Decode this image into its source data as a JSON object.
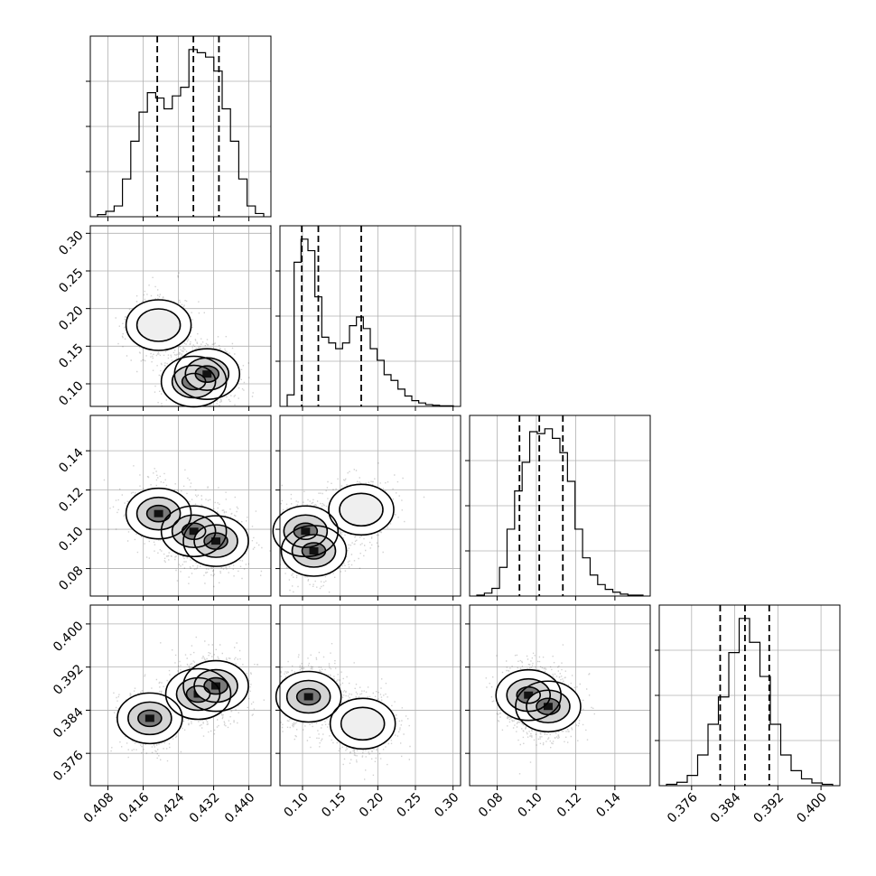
{
  "chart_data": {
    "type": "corner",
    "grid": true,
    "parameters": [
      {
        "range": [
          0.404,
          0.445
        ],
        "ticks": [
          0.408,
          0.416,
          0.424,
          0.432,
          0.44
        ],
        "tick_labels": [
          "0.408",
          "0.416",
          "0.424",
          "0.432",
          "0.440"
        ],
        "quantiles": [
          0.4192,
          0.4274,
          0.4332
        ],
        "hist": [
          2,
          5,
          10,
          35,
          70,
          97,
          115,
          110,
          100,
          112,
          120,
          155,
          152,
          148,
          135,
          100,
          70,
          35,
          10,
          3
        ],
        "modes": [
          {
            "m": 0.4195,
            "s": 0.0032,
            "w": 0.45
          },
          {
            "m": 0.429,
            "s": 0.0035,
            "w": 0.55
          }
        ]
      },
      {
        "range": [
          0.07,
          0.31
        ],
        "ticks": [
          0.1,
          0.15,
          0.2,
          0.25,
          0.3
        ],
        "tick_labels": [
          "0.10",
          "0.15",
          "0.20",
          "0.25",
          "0.30"
        ],
        "quantiles": [
          0.099,
          0.121,
          0.178
        ],
        "hist": [
          20,
          250,
          290,
          270,
          190,
          120,
          110,
          100,
          110,
          140,
          155,
          135,
          100,
          80,
          55,
          45,
          30,
          18,
          10,
          6,
          3,
          2,
          1,
          1
        ],
        "modes": [
          {
            "m": 0.108,
            "s": 0.012,
            "w": 0.55
          },
          {
            "m": 0.175,
            "s": 0.022,
            "w": 0.45
          }
        ]
      },
      {
        "range": [
          0.066,
          0.158
        ],
        "ticks": [
          0.08,
          0.1,
          0.12,
          0.14
        ],
        "tick_labels": [
          "0.08",
          "0.10",
          "0.12",
          "0.14"
        ],
        "quantiles": [
          0.0914,
          0.1015,
          0.1135
        ],
        "hist": [
          1,
          3,
          8,
          30,
          70,
          110,
          140,
          172,
          170,
          175,
          165,
          150,
          120,
          70,
          40,
          22,
          12,
          7,
          4,
          2,
          1,
          1
        ],
        "modes": [
          {
            "m": 0.102,
            "s": 0.011,
            "w": 1.0
          }
        ]
      },
      {
        "range": [
          0.37,
          0.4035
        ],
        "ticks": [
          0.376,
          0.384,
          0.392,
          0.4
        ],
        "tick_labels": [
          "0.376",
          "0.384",
          "0.392",
          "0.400"
        ],
        "quantiles": [
          0.3813,
          0.3859,
          0.3904
        ],
        "hist": [
          2,
          5,
          15,
          45,
          90,
          130,
          195,
          245,
          210,
          160,
          90,
          45,
          22,
          10,
          4,
          2
        ],
        "modes": [
          {
            "m": 0.3858,
            "s": 0.0032,
            "w": 1.0
          }
        ]
      }
    ],
    "pairs": [
      {
        "row": 1,
        "col": 0,
        "dense": [
          {
            "x": 0.4275,
            "y": 0.103
          },
          {
            "x": 0.4305,
            "y": 0.113
          }
        ],
        "light": [
          {
            "x": 0.4195,
            "y": 0.178
          }
        ]
      },
      {
        "row": 2,
        "col": 0,
        "dense": [
          {
            "x": 0.4195,
            "y": 0.108
          },
          {
            "x": 0.4275,
            "y": 0.099
          },
          {
            "x": 0.4325,
            "y": 0.094
          }
        ],
        "light": []
      },
      {
        "row": 2,
        "col": 1,
        "dense": [
          {
            "x": 0.104,
            "y": 0.099
          },
          {
            "x": 0.115,
            "y": 0.089
          }
        ],
        "light": [
          {
            "x": 0.178,
            "y": 0.11
          }
        ]
      },
      {
        "row": 3,
        "col": 0,
        "dense": [
          {
            "x": 0.4175,
            "y": 0.3825
          },
          {
            "x": 0.4285,
            "y": 0.387
          },
          {
            "x": 0.4325,
            "y": 0.3885
          }
        ],
        "light": []
      },
      {
        "row": 3,
        "col": 1,
        "dense": [
          {
            "x": 0.108,
            "y": 0.3865
          }
        ],
        "light": [
          {
            "x": 0.18,
            "y": 0.3815
          }
        ]
      },
      {
        "row": 3,
        "col": 2,
        "dense": [
          {
            "x": 0.096,
            "y": 0.3868
          },
          {
            "x": 0.106,
            "y": 0.3847
          }
        ],
        "light": []
      }
    ]
  }
}
